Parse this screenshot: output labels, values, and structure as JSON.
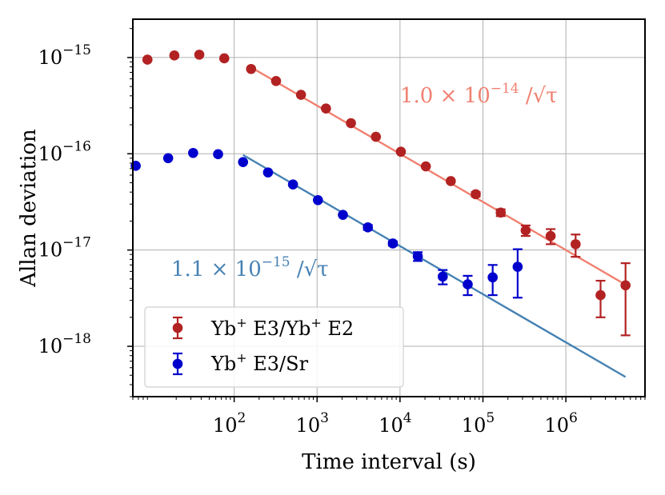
{
  "chart_data": {
    "type": "scatter",
    "xlabel": "Time interval (s)",
    "ylabel": "Allan deviation",
    "xscale": "log",
    "yscale": "log",
    "xlim": [
      6,
      9000000
    ],
    "ylim": [
      3e-19,
      2.5e-15
    ],
    "grid": true,
    "legend_position": "lower-left",
    "x_ticks": [
      {
        "value": 100,
        "base": "10",
        "exp": "2"
      },
      {
        "value": 1000,
        "base": "10",
        "exp": "3"
      },
      {
        "value": 10000,
        "base": "10",
        "exp": "4"
      },
      {
        "value": 100000,
        "base": "10",
        "exp": "5"
      },
      {
        "value": 1000000,
        "base": "10",
        "exp": "6"
      }
    ],
    "y_ticks": [
      {
        "value": 1e-15,
        "base": "10",
        "exp": "−15"
      },
      {
        "value": 1e-16,
        "base": "10",
        "exp": "−16"
      },
      {
        "value": 1e-17,
        "base": "10",
        "exp": "−17"
      },
      {
        "value": 1e-18,
        "base": "10",
        "exp": "−18"
      }
    ],
    "series": [
      {
        "name": "Yb+ E3/Yb+ E2",
        "legend_base": "Yb",
        "legend_sup": "+",
        "legend_mid": " E3/Yb",
        "legend_sup2": "+",
        "legend_end": " E2",
        "color": "#b22222",
        "fit_color": "#f08070",
        "points": [
          {
            "x": 9,
            "y": 9.5e-16,
            "err": 0
          },
          {
            "x": 19,
            "y": 1.05e-15,
            "err": 0
          },
          {
            "x": 38,
            "y": 1.07e-15,
            "err": 0
          },
          {
            "x": 76,
            "y": 9.8e-16,
            "err": 0
          },
          {
            "x": 160,
            "y": 7.6e-16,
            "err": 0
          },
          {
            "x": 320,
            "y": 5.7e-16,
            "err": 0
          },
          {
            "x": 640,
            "y": 4.1e-16,
            "err": 0
          },
          {
            "x": 1280,
            "y": 2.95e-16,
            "err": 0
          },
          {
            "x": 2560,
            "y": 2.08e-16,
            "err": 0
          },
          {
            "x": 5120,
            "y": 1.5e-16,
            "err": 0
          },
          {
            "x": 10240,
            "y": 1.05e-16,
            "err": 0
          },
          {
            "x": 20480,
            "y": 7.4e-17,
            "err": 0
          },
          {
            "x": 40960,
            "y": 5.2e-17,
            "err": 0
          },
          {
            "x": 81920,
            "y": 3.8e-17,
            "err": 2e-18
          },
          {
            "x": 163840,
            "y": 2.45e-17,
            "err": 2e-18
          },
          {
            "x": 327680,
            "y": 1.6e-17,
            "err": 2e-18
          },
          {
            "x": 655360,
            "y": 1.4e-17,
            "err": 2.5e-18
          },
          {
            "x": 1310720,
            "y": 1.15e-17,
            "err": 3e-18
          },
          {
            "x": 2621440,
            "y": 3.4e-18,
            "err": 1.4e-18
          },
          {
            "x": 5242880,
            "y": 4.3e-18,
            "err": 3e-18
          }
        ],
        "fit": {
          "coef": 1e-14,
          "x_start": 160,
          "x_end": 5242880
        },
        "fit_label": {
          "main": "1.0 × 10",
          "exp": "−14",
          "tail": " /√τ"
        }
      },
      {
        "name": "Yb+ E3/Sr",
        "legend_base": "Yb",
        "legend_sup": "+",
        "legend_mid": " E3/Sr",
        "legend_sup2": "",
        "legend_end": "",
        "color": "#0000cd",
        "fit_color": "#4682b4",
        "points": [
          {
            "x": 6.5,
            "y": 7.5e-17,
            "err": 0
          },
          {
            "x": 16,
            "y": 9e-17,
            "err": 0
          },
          {
            "x": 32,
            "y": 1.02e-16,
            "err": 0
          },
          {
            "x": 64,
            "y": 9.9e-17,
            "err": 0
          },
          {
            "x": 128,
            "y": 8.2e-17,
            "err": 0
          },
          {
            "x": 256,
            "y": 6.4e-17,
            "err": 0
          },
          {
            "x": 512,
            "y": 4.8e-17,
            "err": 0
          },
          {
            "x": 1024,
            "y": 3.3e-17,
            "err": 0
          },
          {
            "x": 2048,
            "y": 2.32e-17,
            "err": 0
          },
          {
            "x": 4096,
            "y": 1.72e-17,
            "err": 1e-18
          },
          {
            "x": 8192,
            "y": 1.17e-17,
            "err": 6e-19
          },
          {
            "x": 16384,
            "y": 8.6e-18,
            "err": 9e-19
          },
          {
            "x": 32768,
            "y": 5.3e-18,
            "err": 9e-19
          },
          {
            "x": 65536,
            "y": 4.4e-18,
            "err": 1e-18
          },
          {
            "x": 131072,
            "y": 5.2e-18,
            "err": 1.8e-18
          },
          {
            "x": 262144,
            "y": 6.7e-18,
            "err": 3.5e-18
          }
        ],
        "fit": {
          "coef": 1.1e-15,
          "x_start": 128,
          "x_end": 5242880
        },
        "fit_label": {
          "main": "1.1 × 10",
          "exp": "−15",
          "tail": " /√τ"
        }
      }
    ]
  }
}
